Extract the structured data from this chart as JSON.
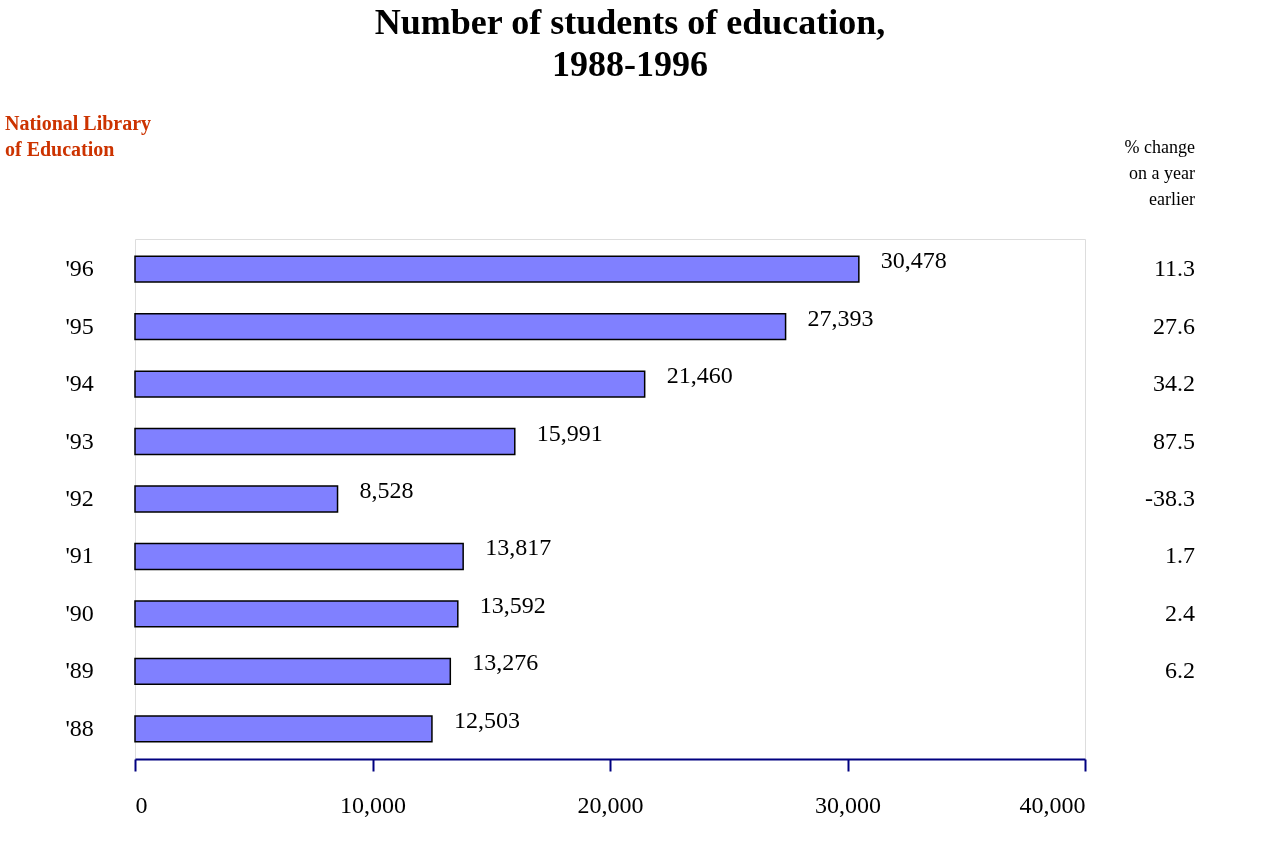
{
  "chart_data": {
    "type": "bar",
    "orientation": "horizontal",
    "title": "Number of students of education, 1988-1996",
    "categories": [
      "'96",
      "'95",
      "'94",
      "'93",
      "'92",
      "'91",
      "'90",
      "'89",
      "'88"
    ],
    "values": [
      30478,
      27393,
      21460,
      15991,
      8528,
      13817,
      13592,
      13276,
      12503
    ],
    "color": "#8080ff",
    "xlim": [
      0,
      40000
    ],
    "xticks": [
      0,
      {
        "value": 10000,
        "label": "10,000"
      },
      {
        "value": 20000,
        "label": "20,000"
      },
      {
        "value": 30000,
        "label": "30,000"
      },
      {
        "value": 40000,
        "label": "40,000"
      }
    ],
    "value_labels": [
      "30,478",
      "27,393",
      "21,460",
      "15,991",
      "8,528",
      "13,817",
      "13,592",
      "13,276",
      "12,503"
    ],
    "grid": false,
    "annotations": [
      "National Library of Education",
      "% change on a year earlier",
      "11.3",
      "27.6",
      "34.2",
      "87.5",
      "-38.3",
      "1.7",
      "2.4",
      "6.2",
      null
    ]
  }
}
